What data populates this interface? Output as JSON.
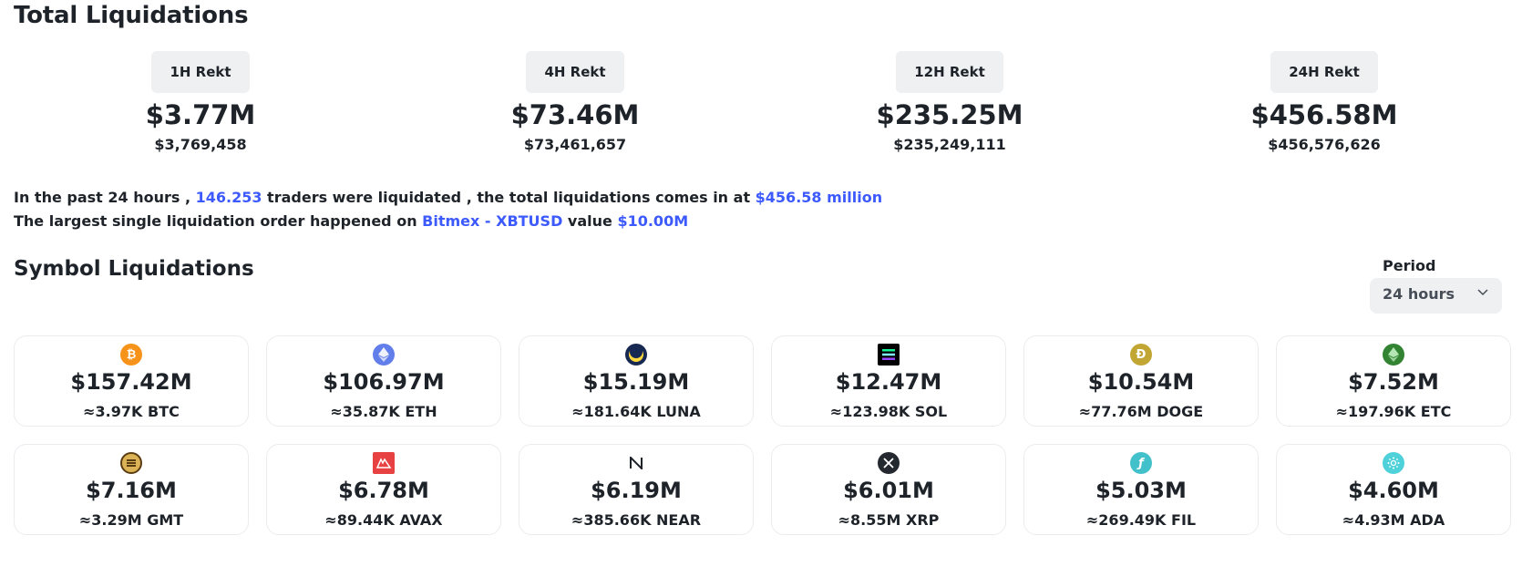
{
  "header": {
    "title": "Total Liquidations"
  },
  "rekt": [
    {
      "label": "1H Rekt",
      "short": "$3.77M",
      "full": "$3,769,458"
    },
    {
      "label": "4H Rekt",
      "short": "$73.46M",
      "full": "$73,461,657"
    },
    {
      "label": "12H Rekt",
      "short": "$235.25M",
      "full": "$235,249,111"
    },
    {
      "label": "24H Rekt",
      "short": "$456.58M",
      "full": "$456,576,626"
    }
  ],
  "summary": {
    "line1_a": "In the past 24 hours , ",
    "traders": "146.253",
    "line1_b": " traders were liquidated , the total liquidations comes in at ",
    "total": "$456.58 million",
    "line2_a": "The largest single liquidation order happened on ",
    "exchange": "Bitmex - XBTUSD",
    "line2_b": " value ",
    "value": "$10.00M"
  },
  "symbols_section": {
    "title": "Symbol Liquidations"
  },
  "period": {
    "label": "Period",
    "selected": "24 hours"
  },
  "colors": {
    "accent": "#3d5afe",
    "badge_bg": "#eef0f2",
    "card_border": "#eaecef"
  },
  "symbols": [
    {
      "icon": "bitcoin-icon",
      "usd": "$157.42M",
      "amount": "≈3.97K BTC"
    },
    {
      "icon": "ethereum-icon",
      "usd": "$106.97M",
      "amount": "≈35.87K ETH"
    },
    {
      "icon": "luna-icon",
      "usd": "$15.19M",
      "amount": "≈181.64K LUNA"
    },
    {
      "icon": "solana-icon",
      "usd": "$12.47M",
      "amount": "≈123.98K SOL"
    },
    {
      "icon": "dogecoin-icon",
      "usd": "$10.54M",
      "amount": "≈77.76M DOGE"
    },
    {
      "icon": "ethereum-classic-icon",
      "usd": "$7.52M",
      "amount": "≈197.96K ETC"
    },
    {
      "icon": "gmt-icon",
      "usd": "$7.16M",
      "amount": "≈3.29M GMT"
    },
    {
      "icon": "avalanche-icon",
      "usd": "$6.78M",
      "amount": "≈89.44K AVAX"
    },
    {
      "icon": "near-icon",
      "usd": "$6.19M",
      "amount": "≈385.66K NEAR"
    },
    {
      "icon": "xrp-icon",
      "usd": "$6.01M",
      "amount": "≈8.55M XRP"
    },
    {
      "icon": "filecoin-icon",
      "usd": "$5.03M",
      "amount": "≈269.49K FIL"
    },
    {
      "icon": "cardano-icon",
      "usd": "$4.60M",
      "amount": "≈4.93M ADA"
    }
  ]
}
